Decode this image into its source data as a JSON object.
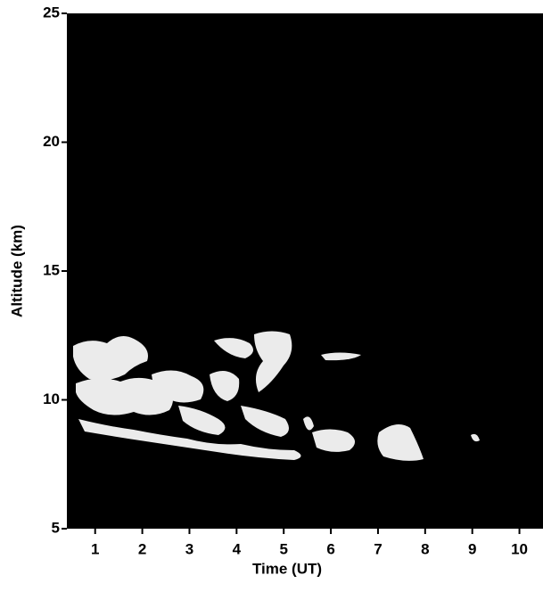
{
  "chart_data": {
    "type": "lidar-image",
    "xlabel": "Time (UT)",
    "ylabel": "Altitude (km)",
    "xlim": [
      0.4,
      10.5
    ],
    "xticks": [
      1,
      2,
      3,
      4,
      5,
      6,
      7,
      8,
      9,
      10
    ],
    "ylim": [
      5,
      25
    ],
    "yticks": [
      5,
      10,
      15,
      20,
      25
    ],
    "background": "#000000",
    "signal_color": "#ffffff"
  }
}
